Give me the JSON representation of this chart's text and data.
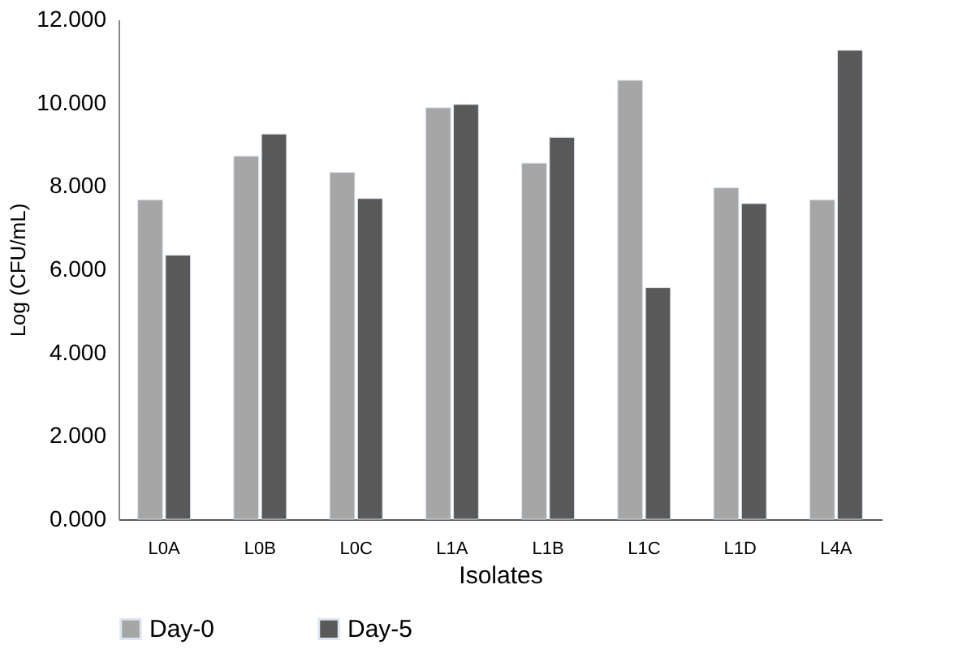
{
  "chart_data": {
    "type": "bar",
    "xlabel": "Isolates",
    "ylabel": "Log (CFU/mL)",
    "categories": [
      "L0A",
      "L0B",
      "L0C",
      "L1A",
      "L1B",
      "L1C",
      "L1D",
      "L4A"
    ],
    "series": [
      {
        "name": "Day-0",
        "color": "#a6a6a6",
        "values": [
          7.67,
          8.72,
          8.33,
          9.88,
          8.55,
          10.54,
          7.96,
          7.67
        ]
      },
      {
        "name": "Day-5",
        "color": "#595959",
        "values": [
          6.34,
          9.25,
          7.7,
          9.96,
          9.17,
          5.56,
          7.58,
          11.26
        ]
      }
    ],
    "ylim": [
      0,
      12
    ],
    "yticks": [
      {
        "value": 0,
        "label": "0.000"
      },
      {
        "value": 2,
        "label": "2.000"
      },
      {
        "value": 4,
        "label": "4.000"
      },
      {
        "value": 6,
        "label": "6.000"
      },
      {
        "value": 8,
        "label": "8.000"
      },
      {
        "value": 10,
        "label": "10.000"
      },
      {
        "value": 12,
        "label": "12.000"
      }
    ],
    "grid": false,
    "legend": "bottom"
  }
}
